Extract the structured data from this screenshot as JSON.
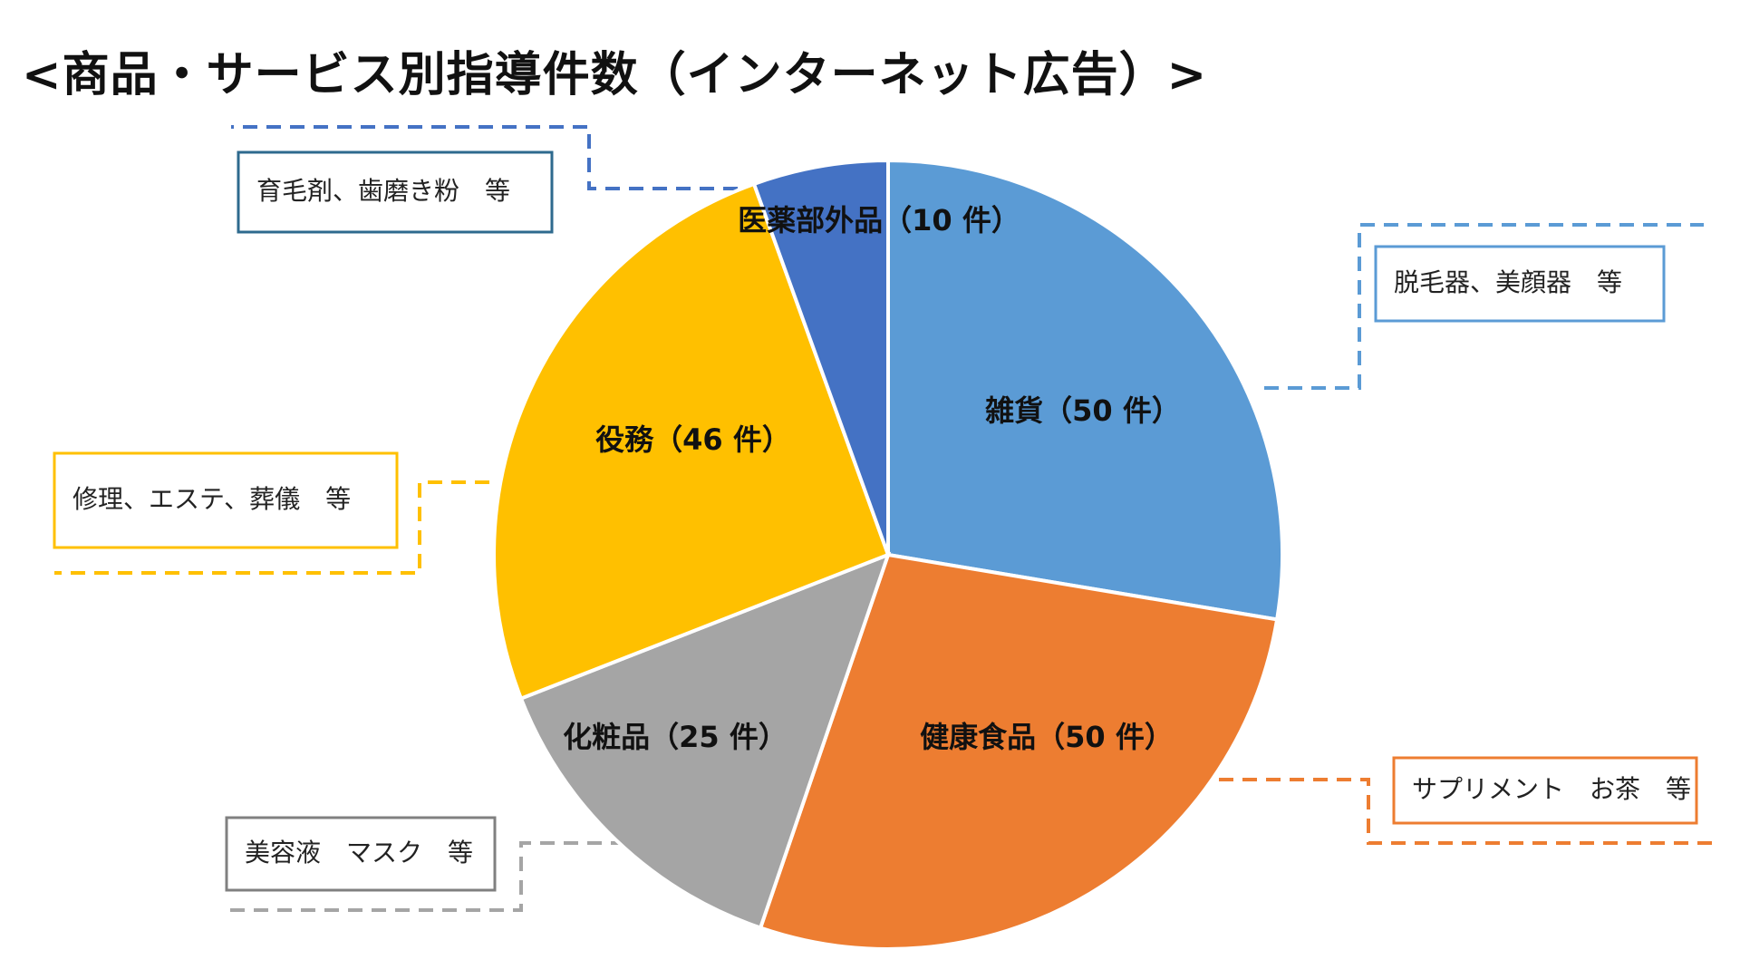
{
  "title": "<商品・サービス別指導件数（インターネット広告）>",
  "chart_data": {
    "type": "pie",
    "start_angle_deg": 0,
    "direction": "clockwise",
    "slices": [
      {
        "name": "雑貨",
        "value": 50,
        "label": "雑貨（50 件）",
        "color": "#5B9BD5",
        "note": "脱毛器、美顔器　等",
        "note_border": "#5B9BD5",
        "leader_color": "#5B9BD5"
      },
      {
        "name": "健康食品",
        "value": 50,
        "label": "健康食品（50 件）",
        "color": "#ED7D31",
        "note": "サプリメント　お茶　等",
        "note_border": "#ED7D31",
        "leader_color": "#ED7D31"
      },
      {
        "name": "化粧品",
        "value": 25,
        "label": "化粧品（25 件）",
        "color": "#A5A5A5",
        "note": "美容液　マスク　等",
        "note_border": "#808080",
        "leader_color": "#A5A5A5"
      },
      {
        "name": "役務",
        "value": 46,
        "label": "役務（46 件）",
        "color": "#FFC000",
        "note": "修理、エステ、葬儀　等",
        "note_border": "#FFC000",
        "leader_color": "#FFC000"
      },
      {
        "name": "医薬部外品",
        "value": 10,
        "label": "医薬部外品（10 件）",
        "color": "#4472C4",
        "note": "育毛剤、歯磨き粉　等",
        "note_border": "#2E6A8E",
        "leader_color": "#4472C4"
      }
    ]
  }
}
